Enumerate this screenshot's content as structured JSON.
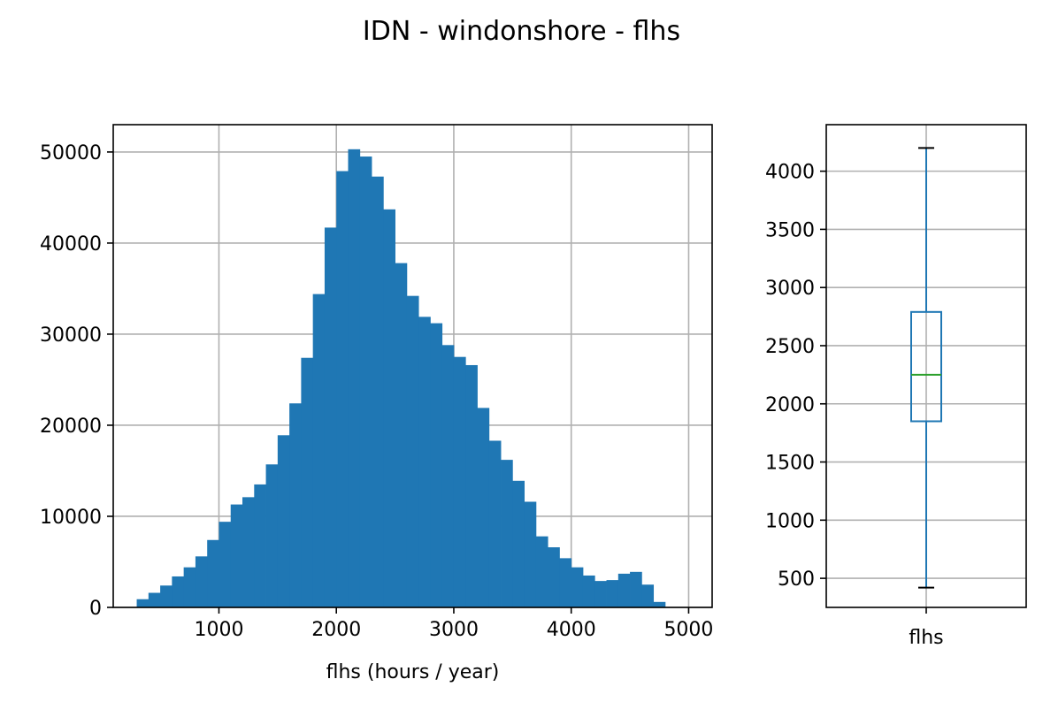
{
  "colors": {
    "bar": "#1f77b4",
    "box": "#1f77b4",
    "median": "#2ca02c",
    "grid": "#b0b0b0",
    "axis": "#000000"
  },
  "chart_data": [
    {
      "type": "bar",
      "subtype": "histogram",
      "title": "IDN - windonshore - flhs",
      "xlabel": "flhs (hours / year)",
      "ylabel": "",
      "xlim": [
        100,
        5200
      ],
      "ylim": [
        0,
        53000
      ],
      "grid": true,
      "xticks": [
        1000,
        2000,
        3000,
        4000,
        5000
      ],
      "yticks": [
        0,
        10000,
        20000,
        30000,
        40000,
        50000
      ],
      "bin_width": 100,
      "bins_start": [
        300,
        400,
        500,
        600,
        700,
        800,
        900,
        1000,
        1100,
        1200,
        1300,
        1400,
        1500,
        1600,
        1700,
        1800,
        1900,
        2000,
        2100,
        2200,
        2300,
        2400,
        2500,
        2600,
        2700,
        2800,
        2900,
        3000,
        3100,
        3200,
        3300,
        3400,
        3500,
        3600,
        3700,
        3800,
        3900,
        4000,
        4100,
        4200,
        4300,
        4400,
        4500,
        4600,
        4700
      ],
      "values": [
        900,
        1600,
        2400,
        3400,
        4400,
        5600,
        7400,
        9400,
        11300,
        12100,
        13500,
        15700,
        18900,
        22400,
        27400,
        34400,
        41700,
        47900,
        50300,
        49500,
        47300,
        43700,
        37800,
        34200,
        31900,
        31200,
        28800,
        27500,
        26600,
        21900,
        18300,
        16200,
        13900,
        11600,
        7800,
        6600,
        5400,
        4400,
        3500,
        2900,
        3000,
        3700,
        3900,
        2500,
        600
      ]
    },
    {
      "type": "box",
      "title": "",
      "xlabel": "",
      "categories": [
        "flhs"
      ],
      "ylim": [
        250,
        4400
      ],
      "grid": true,
      "yticks": [
        500,
        1000,
        1500,
        2000,
        2500,
        3000,
        3500,
        4000
      ],
      "whisker_low": 420,
      "q1": 1850,
      "median": 2250,
      "q3": 2790,
      "whisker_high": 4200
    }
  ]
}
